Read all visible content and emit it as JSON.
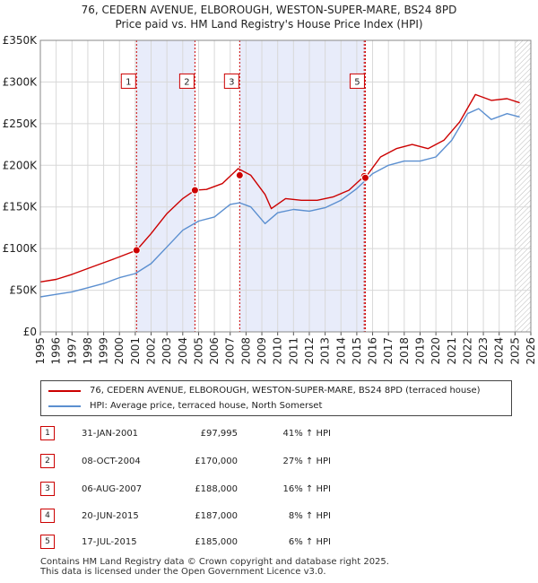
{
  "chart_data": {
    "type": "line",
    "title": "76, CEDERN AVENUE, ELBOROUGH, WESTON-SUPER-MARE, BS24 8PD",
    "subtitle": "Price paid vs. HM Land Registry's House Price Index (HPI)",
    "xlabel": "",
    "ylabel": "",
    "xlim": [
      1995,
      2026
    ],
    "ylim": [
      0,
      350000
    ],
    "x_ticks": [
      "1995",
      "1996",
      "1997",
      "1998",
      "1999",
      "2000",
      "2001",
      "2002",
      "2003",
      "2004",
      "2005",
      "2006",
      "2007",
      "2008",
      "2009",
      "2010",
      "2011",
      "2012",
      "2013",
      "2014",
      "2015",
      "2016",
      "2017",
      "2018",
      "2019",
      "2020",
      "2021",
      "2022",
      "2023",
      "2024",
      "2025",
      "2026"
    ],
    "y_ticks": [
      {
        "value": 0,
        "label": "£0"
      },
      {
        "value": 50000,
        "label": "£50K"
      },
      {
        "value": 100000,
        "label": "£100K"
      },
      {
        "value": 150000,
        "label": "£150K"
      },
      {
        "value": 200000,
        "label": "£200K"
      },
      {
        "value": 250000,
        "label": "£250K"
      },
      {
        "value": 300000,
        "label": "£300K"
      },
      {
        "value": 350000,
        "label": "£350K"
      }
    ],
    "grid": true,
    "series": [
      {
        "name": "76, CEDERN AVENUE, ELBOROUGH, WESTON-SUPER-MARE, BS24 8PD (terraced house)",
        "color": "#cc0000",
        "x": [
          1995.0,
          1996.0,
          1997.0,
          1998.0,
          1999.0,
          2000.0,
          2001.08,
          2002.0,
          2003.0,
          2004.0,
          2004.77,
          2005.5,
          2006.5,
          2007.5,
          2008.3,
          2009.2,
          2009.6,
          2010.5,
          2011.5,
          2012.5,
          2013.5,
          2014.5,
          2015.47,
          2015.54,
          2016.5,
          2017.5,
          2018.5,
          2019.5,
          2020.5,
          2021.5,
          2022.5,
          2023.5,
          2024.5,
          2025.3
        ],
        "y": [
          60000,
          63000,
          69000,
          76000,
          83000,
          90000,
          97995,
          118000,
          142000,
          160000,
          170000,
          171000,
          178000,
          196000,
          188000,
          165000,
          148000,
          160000,
          158000,
          158000,
          162000,
          170000,
          187000,
          185000,
          210000,
          220000,
          225000,
          220000,
          230000,
          252000,
          285000,
          278000,
          280000,
          275000
        ]
      },
      {
        "name": "HPI: Average price, terraced house, North Somerset",
        "color": "#5b8fd0",
        "x": [
          1995.0,
          1996.0,
          1997.0,
          1998.0,
          1999.0,
          2000.0,
          2001.0,
          2002.0,
          2003.0,
          2004.0,
          2005.0,
          2006.0,
          2007.0,
          2007.6,
          2008.3,
          2009.2,
          2010.0,
          2011.0,
          2012.0,
          2013.0,
          2014.0,
          2015.0,
          2016.0,
          2017.0,
          2018.0,
          2019.0,
          2020.0,
          2021.0,
          2022.0,
          2022.7,
          2023.5,
          2024.5,
          2025.3
        ],
        "y": [
          42000,
          45000,
          48000,
          53000,
          58000,
          65000,
          70000,
          82000,
          102000,
          122000,
          133000,
          138000,
          153000,
          155000,
          150000,
          130000,
          143000,
          147000,
          145000,
          149000,
          158000,
          172000,
          190000,
          200000,
          205000,
          205000,
          210000,
          230000,
          262000,
          268000,
          255000,
          262000,
          258000
        ]
      }
    ],
    "sales": [
      {
        "id": "1",
        "date": "31-JAN-2001",
        "price": "£97,995",
        "hpi": "41% ↑ HPI",
        "x": 2001.08,
        "value": 97995
      },
      {
        "id": "2",
        "date": "08-OCT-2004",
        "price": "£170,000",
        "hpi": "27% ↑ HPI",
        "x": 2004.77,
        "value": 170000
      },
      {
        "id": "3",
        "date": "06-AUG-2007",
        "price": "£188,000",
        "hpi": "16% ↑ HPI",
        "x": 2007.6,
        "value": 188000
      },
      {
        "id": "4",
        "date": "20-JUN-2015",
        "price": "£187,000",
        "hpi": "8% ↑ HPI",
        "x": 2015.47,
        "value": 187000
      },
      {
        "id": "5",
        "date": "17-JUL-2015",
        "price": "£185,000",
        "hpi": "6% ↑ HPI",
        "x": 2015.54,
        "value": 185000
      }
    ],
    "chart_label_ids": [
      "1",
      "2",
      "3",
      "5"
    ],
    "shaded_spans": [
      [
        2001.08,
        2004.77
      ],
      [
        2007.6,
        2015.54
      ]
    ],
    "hatch_from": 2025.0
  },
  "legend": {
    "property_label": "76, CEDERN AVENUE, ELBOROUGH, WESTON-SUPER-MARE, BS24 8PD (terraced house)",
    "hpi_label": "HPI: Average price, terraced house, North Somerset"
  },
  "footer": {
    "line1": "Contains HM Land Registry data © Crown copyright and database right 2025.",
    "line2": "This data is licensed under the Open Government Licence v3.0."
  },
  "colors": {
    "property": "#cc0000",
    "hpi": "#5b8fd0",
    "shade": "#e8ecfa",
    "grid": "#d8d8d8"
  }
}
